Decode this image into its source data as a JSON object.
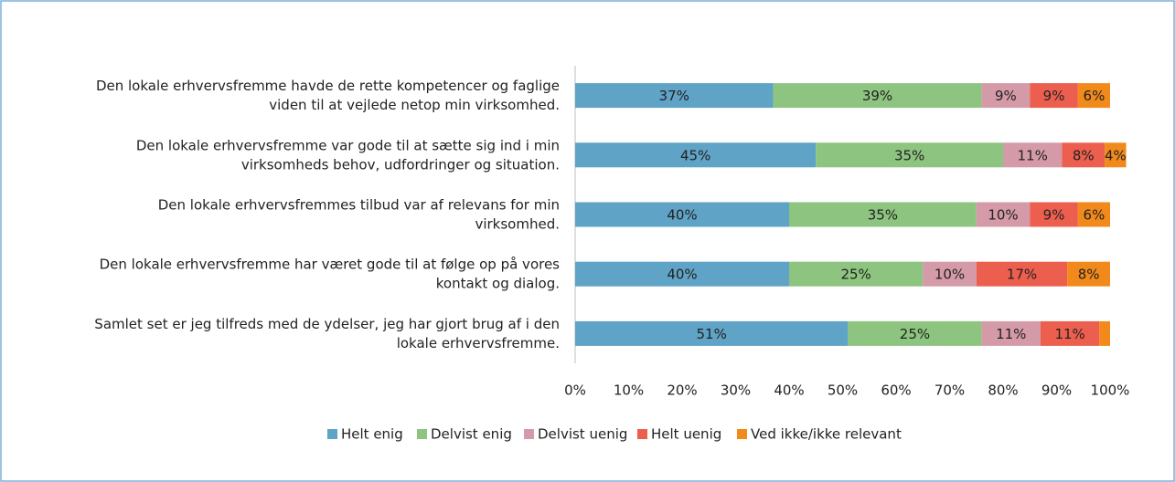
{
  "chart_data": {
    "type": "bar",
    "orientation": "horizontal",
    "stacked": true,
    "categories": [
      "Den lokale erhvervsfremme havde de rette kompetencer og faglige\nviden til at vejlede netop min virksomhed.",
      "Den lokale erhvervsfremme var gode til at sætte sig ind i min\nvirksomheds behov, udfordringer og situation.",
      "Den lokale erhvervsfremmes tilbud var af relevans for min\nvirksomhed.",
      "Den lokale erhvervsfremme har været gode til at følge op på vores\nkontakt og dialog.",
      "Samlet set er jeg tilfreds med de ydelser, jeg har gjort brug af i den\nlokale erhvervsfremme."
    ],
    "series": [
      {
        "name": "Helt enig",
        "color": "#5fa3c6",
        "values": [
          37,
          45,
          40,
          40,
          51
        ],
        "value_labels": [
          "37%",
          "45%",
          "40%",
          "40%",
          "51%"
        ]
      },
      {
        "name": "Delvist enig",
        "color": "#8dc47f",
        "values": [
          39,
          35,
          35,
          25,
          25
        ],
        "value_labels": [
          "39%",
          "35%",
          "35%",
          "25%",
          "25%"
        ]
      },
      {
        "name": "Delvist uenig",
        "color": "#d59aa8",
        "values": [
          9,
          11,
          10,
          10,
          11
        ],
        "value_labels": [
          "9%",
          "11%",
          "10%",
          "10%",
          "11%"
        ]
      },
      {
        "name": "Helt uenig",
        "color": "#ec5f4f",
        "values": [
          9,
          8,
          9,
          17,
          11
        ],
        "value_labels": [
          "9%",
          "8%",
          "9%",
          "17%",
          "11%"
        ]
      },
      {
        "name": "Ved ikke/ikke relevant",
        "color": "#f28a1b",
        "values": [
          6,
          4,
          6,
          8,
          2
        ],
        "value_labels": [
          "6%",
          "4%",
          "6%",
          "8%",
          null
        ]
      }
    ],
    "xlim": [
      0,
      100
    ],
    "xticks": [
      {
        "value": 0,
        "label": "0%"
      },
      {
        "value": 10,
        "label": "10%"
      },
      {
        "value": 20,
        "label": "20%"
      },
      {
        "value": 30,
        "label": "30%"
      },
      {
        "value": 40,
        "label": "40%"
      },
      {
        "value": 50,
        "label": "50%"
      },
      {
        "value": 60,
        "label": "60%"
      },
      {
        "value": 70,
        "label": "70%"
      },
      {
        "value": 80,
        "label": "80%"
      },
      {
        "value": 90,
        "label": "90%"
      },
      {
        "value": 100,
        "label": "100%"
      }
    ],
    "legend": "bottom"
  }
}
